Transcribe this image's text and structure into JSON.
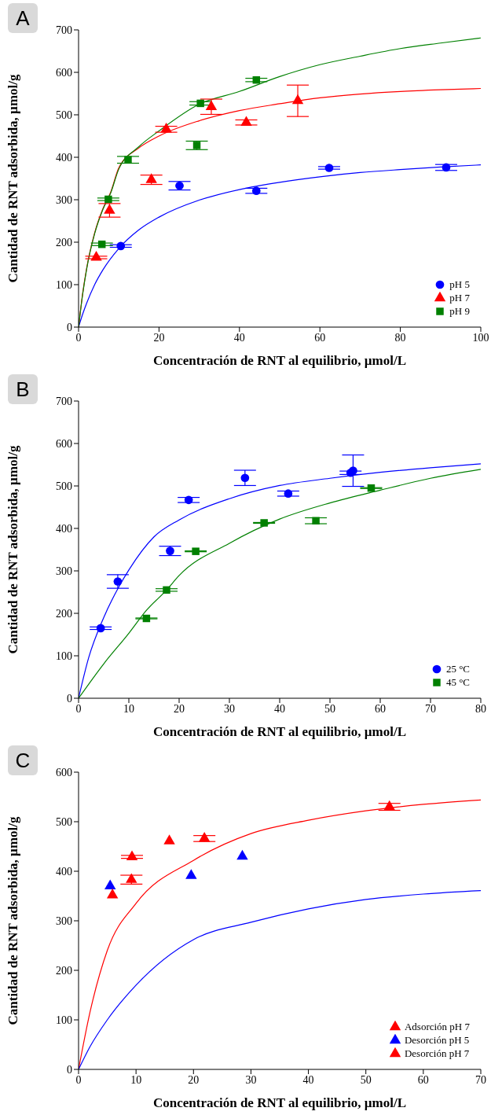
{
  "chart_data": [
    {
      "type": "scatter",
      "title": "A",
      "xlabel": "Concentración de RNT al equilibrio, µmol/L",
      "ylabel": "Cantidad de RNT adsorbida, µmol/g",
      "xlim": [
        0,
        100
      ],
      "xticks": [
        0,
        20,
        40,
        60,
        80,
        100
      ],
      "ylim": [
        0,
        700
      ],
      "yticks": [
        0,
        100,
        200,
        300,
        400,
        500,
        600,
        700
      ],
      "legend": "bottom right",
      "series": [
        {
          "type": "line",
          "color": "#0000ff",
          "marker": "none",
          "x": [
            0,
            1,
            2,
            4,
            6,
            10,
            15,
            20,
            30,
            40,
            50,
            60,
            70,
            80,
            90,
            100
          ],
          "values": [
            0,
            30,
            56,
            100,
            134,
            185,
            229,
            259,
            299,
            324,
            341,
            354,
            364,
            371,
            377,
            382
          ]
        },
        {
          "type": "line",
          "color": "#ff0000",
          "marker": "none",
          "x": [
            0,
            1,
            2,
            4,
            6,
            8,
            10,
            15,
            20,
            30,
            40,
            50,
            60,
            70,
            80,
            90,
            100
          ],
          "values": [
            0,
            78,
            138,
            222,
            278,
            318,
            375,
            422,
            450,
            486,
            510,
            526,
            540,
            549,
            555,
            559,
            562
          ]
        },
        {
          "type": "line",
          "color": "#008000",
          "marker": "none",
          "x": [
            0,
            1,
            2,
            4,
            6,
            8,
            10,
            15,
            20,
            30,
            40,
            50,
            60,
            70,
            80,
            90,
            100
          ],
          "values": [
            0,
            76,
            136,
            220,
            276,
            316,
            372,
            425,
            462,
            525,
            555,
            590,
            618,
            638,
            656,
            669,
            681
          ]
        },
        {
          "name": "pH 5",
          "color": "#0000ff",
          "marker": "circle",
          "x": [
            10.5,
            25.1,
            44.2,
            62.3,
            91.4
          ],
          "values": [
            191,
            333,
            321,
            375,
            376
          ],
          "errors": [
            3,
            10,
            6,
            3,
            7
          ]
        },
        {
          "name": "pH 7",
          "color": "#ff0000",
          "marker": "triangle",
          "x": [
            4.4,
            7.7,
            18.1,
            21.8,
            33.0,
            41.7,
            54.5
          ],
          "values": [
            164,
            275,
            347,
            466,
            519,
            482,
            533
          ],
          "errors": [
            3,
            16,
            11,
            7,
            18,
            6,
            37
          ]
        },
        {
          "name": "pH 9",
          "color": "#008000",
          "marker": "square",
          "x": [
            5.8,
            7.4,
            12.3,
            29.4,
            30.3,
            44.2
          ],
          "values": [
            195,
            301,
            394,
            428,
            527,
            582
          ],
          "errors": [
            3,
            3,
            8,
            10,
            4,
            4
          ]
        }
      ]
    },
    {
      "type": "scatter",
      "title": "B",
      "xlabel": "Concentración de RNT al equilibrio, µmol/L",
      "ylabel": "Cantidad de RNT adsorbida, µmol/g",
      "xlim": [
        0,
        80
      ],
      "xticks": [
        0,
        10,
        20,
        30,
        40,
        50,
        60,
        70,
        80
      ],
      "ylim": [
        0,
        700
      ],
      "yticks": [
        0,
        100,
        200,
        300,
        400,
        500,
        600,
        700
      ],
      "legend": "bottom right",
      "series": [
        {
          "type": "line",
          "color": "#0000ff",
          "marker": "none",
          "x": [
            0,
            2,
            5,
            8,
            10,
            15,
            20,
            30,
            40,
            50,
            60,
            70,
            80
          ],
          "values": [
            0,
            95,
            190,
            262,
            302,
            380,
            420,
            470,
            501,
            518,
            532,
            543,
            552
          ]
        },
        {
          "type": "line",
          "color": "#008000",
          "marker": "none",
          "x": [
            0,
            5,
            10,
            13.5,
            17.5,
            20,
            30,
            40,
            50,
            60,
            70,
            80
          ],
          "values": [
            0,
            81,
            153,
            207,
            255,
            289,
            365,
            422,
            460,
            490,
            518,
            539
          ]
        },
        {
          "name": "25 °C",
          "color": "#0000ff",
          "marker": "circle",
          "x": [
            4.4,
            7.8,
            18.2,
            21.9,
            33.1,
            41.7,
            54.1,
            54.6
          ],
          "values": [
            165,
            275,
            347,
            467,
            519,
            482,
            531,
            536
          ],
          "errors": [
            3,
            16,
            11,
            6,
            18,
            6,
            4,
            37
          ]
        },
        {
          "name": "45 °C",
          "color": "#008000",
          "marker": "square",
          "x": [
            13.5,
            17.5,
            23.3,
            36.9,
            47.2,
            58.2
          ],
          "values": [
            188,
            255,
            346,
            413,
            418,
            495
          ],
          "errors": [
            1,
            3,
            1,
            1,
            7,
            1
          ]
        }
      ]
    },
    {
      "type": "scatter",
      "title": "C",
      "xlabel": "Concentración de RNT al equilibrio, µmol/L",
      "ylabel": "Cantidad de RNT adsorbida, µmol/g",
      "xlim": [
        0,
        70
      ],
      "xticks": [
        0,
        10,
        20,
        30,
        40,
        50,
        60,
        70
      ],
      "ylim": [
        0,
        600
      ],
      "yticks": [
        0,
        100,
        200,
        300,
        400,
        500,
        600
      ],
      "legend": "bottom right",
      "series": [
        {
          "type": "line",
          "color": "#ff0000",
          "marker": "none",
          "x": [
            0,
            2,
            5,
            10,
            20,
            30,
            40,
            50,
            60,
            70
          ],
          "values": [
            0,
            116,
            240,
            335,
            422,
            476,
            503,
            522,
            535,
            544
          ]
        },
        {
          "type": "line",
          "color": "#0000ff",
          "marker": "none",
          "x": [
            0,
            2,
            5,
            10,
            20,
            30,
            40,
            50,
            60,
            70
          ],
          "values": [
            0,
            46,
            100,
            170,
            262,
            297,
            324,
            343,
            354,
            361
          ]
        },
        {
          "name": "Adsorción pH 7",
          "color": "#ff0000",
          "marker": "triangle",
          "x": [
            9.2,
            21.9,
            54.1
          ],
          "values": [
            383,
            466,
            530
          ],
          "errors": [
            9,
            6,
            7
          ]
        },
        {
          "name": "Desorción pH 5",
          "color": "#0000ff",
          "marker": "triangle",
          "x": [
            5.5,
            19.6,
            28.5
          ],
          "values": [
            370,
            391,
            430
          ]
        },
        {
          "name": "Desorción pH 7",
          "color": "#ff0000",
          "marker": "triangle",
          "x": [
            5.9,
            9.3,
            15.8
          ],
          "values": [
            352,
            429,
            461
          ],
          "errors": [
            null,
            3,
            null
          ]
        }
      ]
    }
  ]
}
